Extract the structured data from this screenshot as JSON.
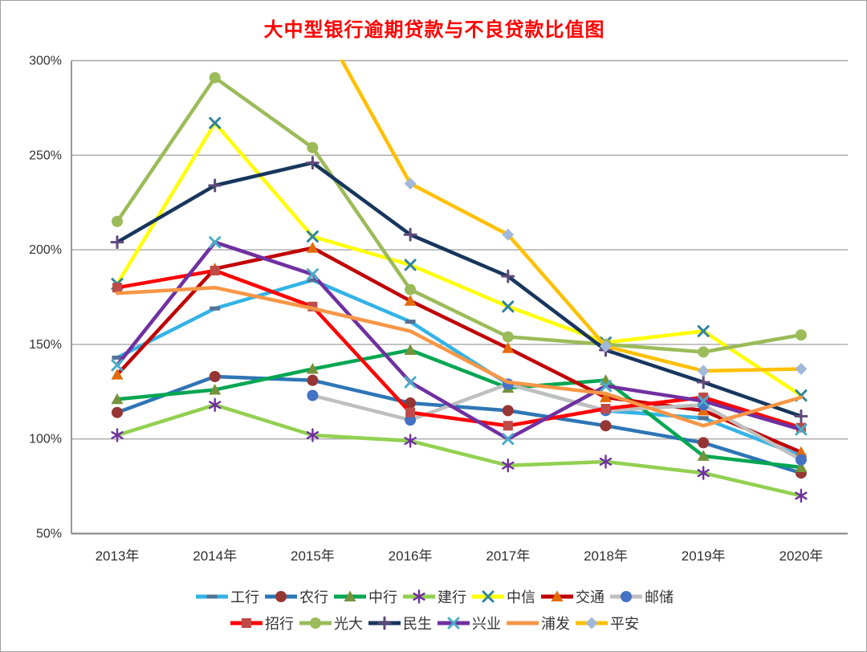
{
  "title": "大中型银行逾期贷款与不良贷款比值图",
  "title_color": "#FF0000",
  "chart_data": {
    "type": "line",
    "title": "大中型银行逾期贷款与不良贷款比值图",
    "categories": [
      "2013年",
      "2014年",
      "2015年",
      "2016年",
      "2017年",
      "2018年",
      "2019年",
      "2020年"
    ],
    "ylim": [
      50,
      300
    ],
    "yticks": [
      {
        "value": 300,
        "label": "300%"
      },
      {
        "value": 250,
        "label": "250%"
      },
      {
        "value": 200,
        "label": "200%"
      },
      {
        "value": 150,
        "label": "150%"
      },
      {
        "value": 100,
        "label": "100%"
      },
      {
        "value": 50,
        "label": "50%"
      }
    ],
    "grid": true,
    "grid_color": "#a6a6a6",
    "axis_color": "#808080",
    "legend_position": "bottom",
    "legend_row_break": 7,
    "series": [
      {
        "id": "icbc",
        "name": "工行",
        "line_color": "#33b3e6",
        "marker": "dash",
        "marker_color": "#527196",
        "values": [
          143,
          169,
          184,
          162,
          129,
          115,
          111,
          91
        ]
      },
      {
        "id": "abc",
        "name": "农行",
        "line_color": "#2e75b6",
        "marker": "circle",
        "marker_color": "#963634",
        "values": [
          114,
          133,
          131,
          119,
          115,
          107,
          98,
          82
        ]
      },
      {
        "id": "boc",
        "name": "中行",
        "line_color": "#00a651",
        "marker": "triangle",
        "marker_color": "#76923c",
        "values": [
          121,
          126,
          137,
          147,
          127,
          131,
          91,
          85
        ]
      },
      {
        "id": "ccb",
        "name": "建行",
        "line_color": "#92d050",
        "marker": "asterisk",
        "marker_color": "#7030a0",
        "values": [
          102,
          118,
          102,
          99,
          86,
          88,
          82,
          70
        ]
      },
      {
        "id": "citic",
        "name": "中信",
        "line_color": "#ffff00",
        "marker": "x",
        "marker_color": "#31859c",
        "values": [
          182,
          267,
          207,
          192,
          170,
          151,
          157,
          123
        ]
      },
      {
        "id": "bocom",
        "name": "交通",
        "line_color": "#c00000",
        "marker": "triangle",
        "marker_color": "#e36c0a",
        "values": [
          134,
          190,
          201,
          173,
          148,
          122,
          115,
          93
        ]
      },
      {
        "id": "psbc",
        "name": "邮储",
        "line_color": "#bfbfbf",
        "marker": "circle",
        "marker_color": "#4472c4",
        "values": [
          null,
          null,
          123,
          110,
          129,
          115,
          118,
          89
        ]
      },
      {
        "id": "cmb",
        "name": "招行",
        "line_color": "#ff0000",
        "marker": "square",
        "marker_color": "#be4b48",
        "values": [
          180,
          189,
          170,
          114,
          107,
          116,
          122,
          106
        ]
      },
      {
        "id": "ceb",
        "name": "光大",
        "line_color": "#9bbb59",
        "marker": "circle",
        "marker_color": "#9bbb59",
        "values": [
          215,
          291,
          254,
          179,
          154,
          150,
          146,
          155
        ]
      },
      {
        "id": "minsheng",
        "name": "民生",
        "line_color": "#17365d",
        "marker": "plus",
        "marker_color": "#604a7b",
        "values": [
          204,
          234,
          246,
          208,
          186,
          147,
          130,
          112
        ]
      },
      {
        "id": "cib",
        "name": "兴业",
        "line_color": "#7030a0",
        "marker": "x",
        "marker_color": "#4bacc6",
        "values": [
          139,
          204,
          187,
          130,
          100,
          128,
          120,
          105
        ]
      },
      {
        "id": "spdb",
        "name": "浦发",
        "line_color": "#f79646",
        "marker": "none",
        "marker_color": "#f79646",
        "values": [
          177,
          180,
          169,
          157,
          130,
          124,
          107,
          122
        ]
      },
      {
        "id": "pingan",
        "name": "平安",
        "line_color": "#ffc000",
        "marker": "diamond",
        "marker_color": "#a3b8d9",
        "values": [
          null,
          null,
          328,
          235,
          208,
          149,
          136,
          137
        ]
      }
    ]
  }
}
